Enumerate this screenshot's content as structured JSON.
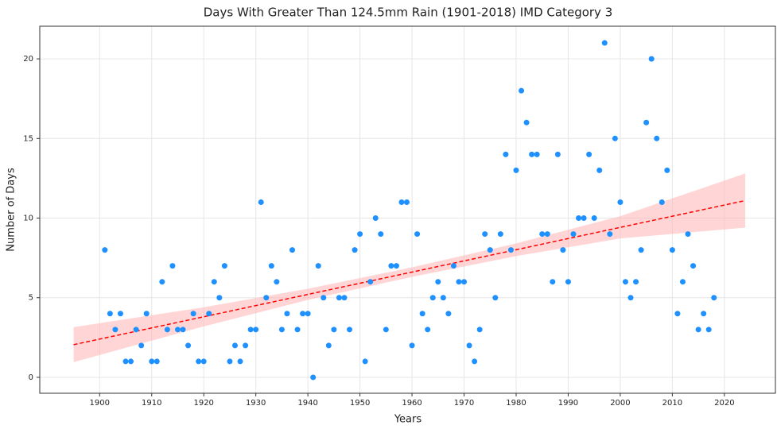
{
  "chart_data": {
    "type": "scatter",
    "title": "Days With Greater Than 124.5mm Rain (1901-2018) IMD Category 3",
    "x_label": "Years",
    "y_label": "Number of Days",
    "xlim": [
      1888.5,
      2029.8
    ],
    "ylim": [
      -1,
      22.05
    ],
    "xticks": [
      1900,
      1910,
      1920,
      1930,
      1940,
      1950,
      1960,
      1970,
      1980,
      1990,
      2000,
      2010,
      2020
    ],
    "yticks": [
      0,
      5,
      10,
      15,
      20
    ],
    "grid": true,
    "points": {
      "color": "#1e90ff",
      "x": [
        1901,
        1902,
        1903,
        1904,
        1905,
        1906,
        1907,
        1908,
        1909,
        1910,
        1911,
        1912,
        1913,
        1914,
        1915,
        1916,
        1917,
        1918,
        1919,
        1920,
        1921,
        1922,
        1923,
        1924,
        1925,
        1926,
        1927,
        1928,
        1929,
        1930,
        1931,
        1932,
        1933,
        1934,
        1935,
        1936,
        1937,
        1938,
        1939,
        1940,
        1941,
        1942,
        1943,
        1944,
        1945,
        1946,
        1947,
        1948,
        1949,
        1950,
        1951,
        1952,
        1953,
        1954,
        1955,
        1956,
        1957,
        1958,
        1959,
        1960,
        1961,
        1962,
        1963,
        1964,
        1965,
        1966,
        1967,
        1968,
        1969,
        1970,
        1971,
        1972,
        1973,
        1974,
        1975,
        1976,
        1977,
        1978,
        1979,
        1980,
        1981,
        1982,
        1983,
        1984,
        1985,
        1986,
        1987,
        1988,
        1989,
        1990,
        1991,
        1992,
        1993,
        1994,
        1995,
        1996,
        1997,
        1998,
        1999,
        2000,
        2001,
        2002,
        2003,
        2004,
        2005,
        2006,
        2007,
        2008,
        2009,
        2010,
        2011,
        2012,
        2013,
        2014,
        2015,
        2016,
        2017,
        2018
      ],
      "values": [
        8,
        4,
        3,
        4,
        1,
        1,
        3,
        2,
        4,
        1,
        1,
        6,
        3,
        7,
        3,
        3,
        2,
        4,
        1,
        1,
        4,
        6,
        5,
        7,
        1,
        2,
        1,
        2,
        3,
        3,
        11,
        5,
        7,
        6,
        3,
        4,
        8,
        3,
        4,
        4,
        0,
        7,
        5,
        2,
        3,
        5,
        5,
        3,
        8,
        9,
        1,
        6,
        10,
        9,
        3,
        7,
        7,
        11,
        11,
        2,
        9,
        4,
        3,
        5,
        6,
        5,
        4,
        7,
        6,
        6,
        2,
        1,
        3,
        9,
        8,
        5,
        9,
        14,
        8,
        13,
        18,
        16,
        14,
        14,
        9,
        9,
        6,
        14,
        8,
        6,
        9,
        10,
        10,
        14,
        10,
        13,
        21,
        9,
        15,
        11,
        6,
        5,
        6,
        8,
        16,
        20,
        15,
        11,
        13,
        8,
        4,
        6,
        9,
        7,
        3,
        4,
        3,
        5
      ]
    },
    "fit": {
      "color": "#ff0000",
      "x": [
        1895,
        2024
      ],
      "values": [
        2.05,
        11.1
      ]
    },
    "band": {
      "color": "#ffb3b3",
      "x": [
        1895,
        1920,
        1940,
        1960,
        1980,
        2000,
        2024
      ],
      "lower": [
        0.95,
        3.2,
        4.86,
        6.31,
        7.61,
        8.72,
        9.4
      ],
      "upper": [
        3.15,
        4.4,
        5.56,
        6.91,
        8.41,
        10.12,
        12.8
      ]
    }
  }
}
